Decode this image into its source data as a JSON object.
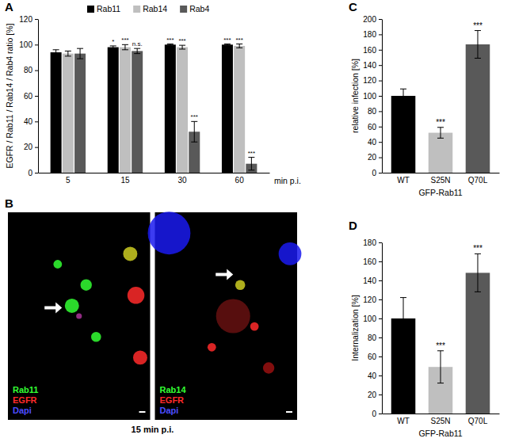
{
  "chart_data": [
    {
      "type": "bar",
      "panel": "A",
      "y_label": "EGFR / Rab11 / Rab14 / Rab4 ratio [%]",
      "x_label": "min p.i.",
      "categories": [
        "5",
        "15",
        "30",
        "60"
      ],
      "ylim": [
        0,
        120
      ],
      "yticks": [
        0,
        20,
        40,
        60,
        80,
        100,
        120
      ],
      "legend": "top",
      "series": [
        {
          "name": "Rab11",
          "color": "#000000",
          "values": [
            94,
            98,
            100,
            100
          ],
          "errors": [
            2,
            1,
            0.5,
            0.5
          ],
          "significance": [
            null,
            "*",
            "***",
            "***"
          ]
        },
        {
          "name": "Rab14",
          "color": "#bfbfbf",
          "values": [
            93,
            98,
            98,
            99
          ],
          "errors": [
            2,
            2,
            1.5,
            1.5
          ],
          "significance": [
            null,
            "***",
            "***",
            "***"
          ]
        },
        {
          "name": "Rab4",
          "color": "#595959",
          "values": [
            93,
            95,
            32,
            7
          ],
          "errors": [
            4,
            2,
            8,
            5
          ],
          "significance": [
            null,
            "n.s.",
            "***",
            "***"
          ]
        }
      ]
    },
    {
      "type": "image",
      "panel": "B",
      "caption": "15 min p.i.",
      "images": [
        {
          "labels": [
            {
              "name": "Rab11",
              "color": "#33ff33"
            },
            {
              "name": "EGFR",
              "color": "#ff2a2a"
            },
            {
              "name": "Dapi",
              "color": "#4d4dff"
            }
          ]
        },
        {
          "labels": [
            {
              "name": "Rab14",
              "color": "#33ff33"
            },
            {
              "name": "EGFR",
              "color": "#ff2a2a"
            },
            {
              "name": "Dapi",
              "color": "#4d4dff"
            }
          ]
        }
      ]
    },
    {
      "type": "bar",
      "panel": "C",
      "y_label": "relative infection [%]",
      "x_label": "GFP-Rab11",
      "categories": [
        "WT",
        "S25N",
        "Q70L"
      ],
      "ylim": [
        0,
        200
      ],
      "yticks": [
        0,
        20,
        40,
        60,
        80,
        100,
        120,
        140,
        160,
        180,
        200
      ],
      "values": [
        100,
        52,
        167
      ],
      "errors": [
        9,
        7,
        18
      ],
      "colors": [
        "#000000",
        "#bfbfbf",
        "#595959"
      ],
      "significance": [
        null,
        "***",
        "***"
      ]
    },
    {
      "type": "bar",
      "panel": "D",
      "y_label": "Internalization [%]",
      "x_label": "GFP-Rab11",
      "categories": [
        "WT",
        "S25N",
        "Q70L"
      ],
      "ylim": [
        0,
        180
      ],
      "yticks": [
        0,
        20,
        40,
        60,
        80,
        100,
        120,
        140,
        160,
        180
      ],
      "values": [
        100,
        49,
        148
      ],
      "errors": [
        22,
        17,
        20
      ],
      "colors": [
        "#000000",
        "#bfbfbf",
        "#595959"
      ],
      "significance": [
        null,
        "***",
        "***"
      ]
    }
  ]
}
